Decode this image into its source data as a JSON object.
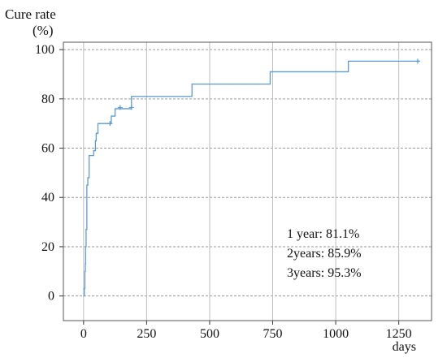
{
  "chart_data": {
    "type": "line",
    "ylabel_line1": "Cure rate",
    "ylabel_line2": "(%)",
    "xlabel": "days",
    "xlim": [
      -80,
      1380
    ],
    "ylim": [
      -10,
      103
    ],
    "xticks": [
      0,
      250,
      500,
      750,
      1000,
      1250
    ],
    "yticks": [
      0,
      20,
      40,
      60,
      80,
      100
    ],
    "grid": true,
    "series": [
      {
        "color": "#5b9bd5",
        "steps": [
          [
            0,
            0
          ],
          [
            3,
            3
          ],
          [
            5,
            10
          ],
          [
            7,
            13
          ],
          [
            8,
            20
          ],
          [
            10,
            27
          ],
          [
            13,
            45
          ],
          [
            17,
            48
          ],
          [
            22,
            57
          ],
          [
            40,
            59
          ],
          [
            47,
            63
          ],
          [
            50,
            66
          ],
          [
            57,
            70
          ],
          [
            100,
            70
          ],
          [
            110,
            73
          ],
          [
            125,
            76
          ],
          [
            190,
            81
          ],
          [
            430,
            86
          ],
          [
            740,
            91
          ],
          [
            1050,
            95.3
          ],
          [
            1330,
            95.3
          ]
        ],
        "censored": [
          [
            105,
            70
          ],
          [
            145,
            76.5
          ],
          [
            190,
            76.5
          ],
          [
            1325,
            95.3
          ]
        ]
      }
    ],
    "annotations": [
      "1 year: 81.1%",
      "2years: 85.9%",
      "3years: 95.3%"
    ]
  }
}
